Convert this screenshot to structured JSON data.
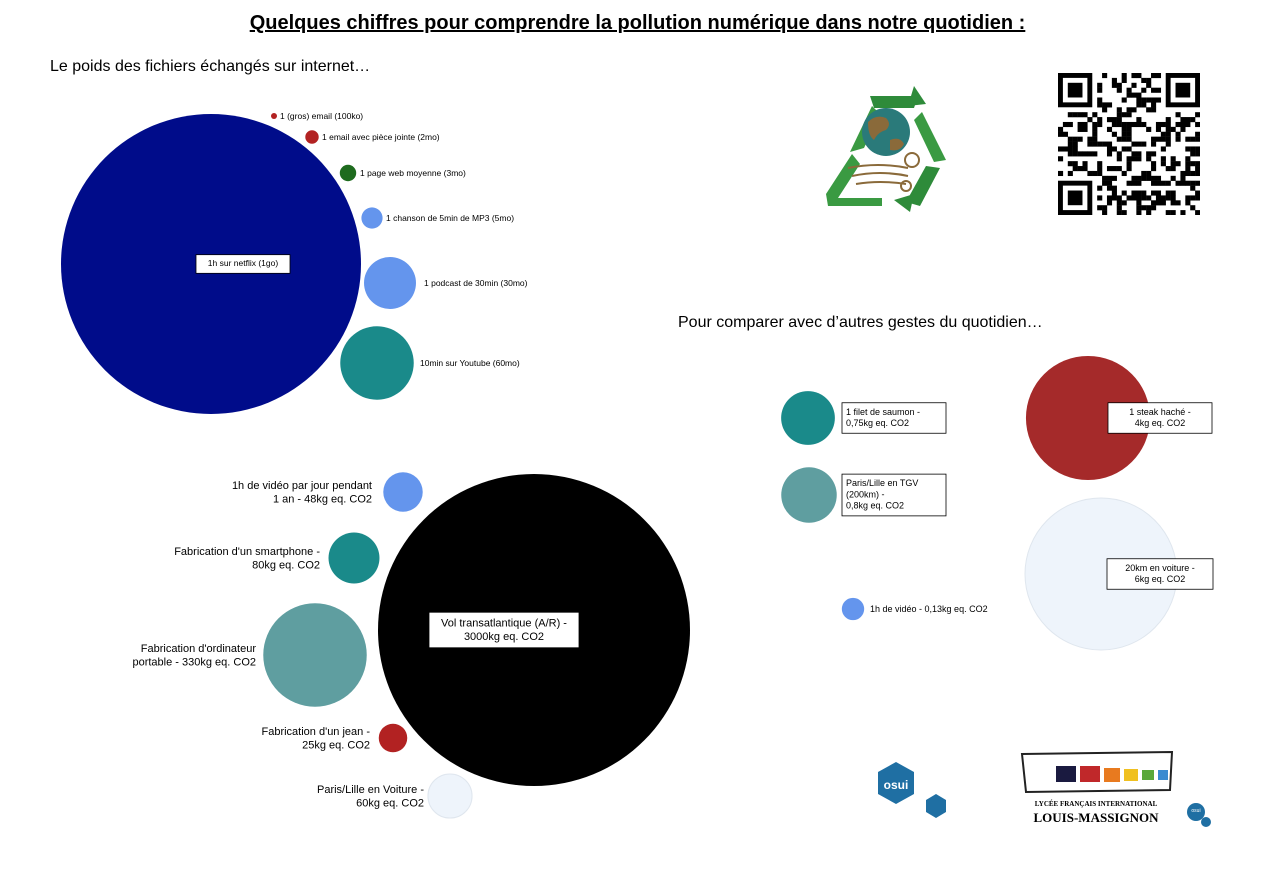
{
  "header": {
    "title": "Quelques chiffres pour comprendre la pollution numérique dans notre quotidien :",
    "subtitle_files": "Le poids des fichiers échangés sur internet…",
    "subtitle_compare": "Pour comparer avec d’autres gestes du quotidien…"
  },
  "chart_data": [
    {
      "type": "bubble",
      "title": "Le poids des fichiers échangés sur internet…",
      "unit": "mo",
      "items": [
        {
          "label": "1 (gros) email (100ko)",
          "value": 0.1,
          "color": "#b22222"
        },
        {
          "label": "1 email avec pièce jointe (2mo)",
          "value": 2,
          "color": "#b22222"
        },
        {
          "label": "1 page web moyenne (3mo)",
          "value": 3,
          "color": "#1e6b1e"
        },
        {
          "label": "1 chanson de 5min de MP3 (5mo)",
          "value": 5,
          "color": "#6495ed"
        },
        {
          "label": "1 podcast de 30min (30mo)",
          "value": 30,
          "color": "#6495ed"
        },
        {
          "label": "10min sur Youtube (60mo)",
          "value": 60,
          "color": "#1a8a8a"
        },
        {
          "label": "1h sur netflix (1go)",
          "value": 1000,
          "color": "#000c8a"
        }
      ]
    },
    {
      "type": "bubble",
      "unit": "kg eq. CO2",
      "items": [
        {
          "label": "1h de vidéo par jour pendant 1 an - 48kg eq. CO2",
          "value": 48,
          "color": "#6495ed"
        },
        {
          "label": "Fabrication d'un smartphone - 80kg eq. CO2",
          "value": 80,
          "color": "#1a8a8a"
        },
        {
          "label": "Fabrication d'ordinateur portable - 330kg eq. CO2",
          "value": 330,
          "color": "#5f9ea0"
        },
        {
          "label": "Fabrication d'un jean - 25kg eq. CO2",
          "value": 25,
          "color": "#b22222"
        },
        {
          "label": "Paris/Lille en Voiture - 60kg eq. CO2",
          "value": 60,
          "color": "#eef4fb"
        },
        {
          "label": "Vol transatlantique (A/R) - 3000kg eq. CO2",
          "value": 3000,
          "color": "#000000"
        }
      ]
    },
    {
      "type": "bubble",
      "title": "Pour comparer avec d’autres gestes du quotidien…",
      "unit": "kg eq. CO2",
      "items": [
        {
          "label": "1 filet de saumon - 0,75kg eq. CO2",
          "value": 0.75,
          "color": "#1a8a8a"
        },
        {
          "label": "Paris/Lille en TGV (200km) - 0,8kg eq. CO2",
          "value": 0.8,
          "color": "#5f9ea0"
        },
        {
          "label": "1h de vidéo - 0,13kg eq. CO2",
          "value": 0.13,
          "color": "#6495ed"
        },
        {
          "label": "1 steak haché - 4kg eq. CO2",
          "value": 4,
          "color": "#a52a2a"
        },
        {
          "label": "20km en voiture - 6kg eq. CO2",
          "value": 6,
          "color": "#eef4fb"
        }
      ]
    }
  ],
  "logos": {
    "recycle_icon": "recycle-earth-icon",
    "qr_icon": "qr-code-icon",
    "osui_text": "osui",
    "school_line1": "LYCÉE FRANÇAIS INTERNATIONAL",
    "school_line2": "LOUIS-MASSIGNON",
    "small_osui": "osui"
  },
  "colors": {
    "green_logo": "#2e8b3a",
    "earth": "#2a7a7a",
    "osui_blue": "#1f6fa3"
  }
}
